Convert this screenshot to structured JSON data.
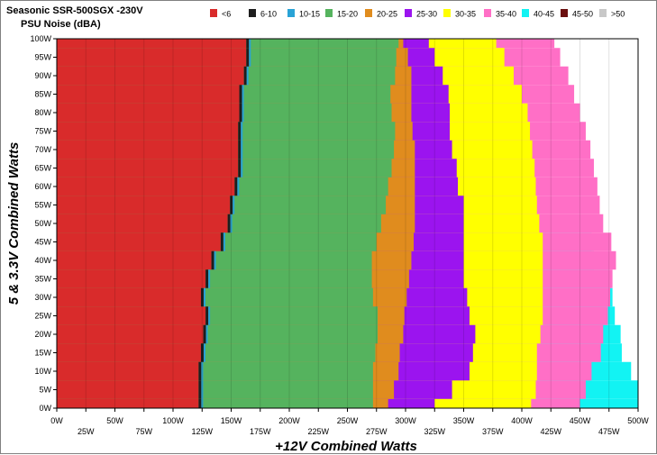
{
  "chart_data": {
    "type": "heatmap",
    "title": "Seasonic SSR-500SGX -230V",
    "subtitle": "PSU Noise (dBA)",
    "xlabel": "+12V Combined Watts",
    "ylabel": "5 & 3.3V Combined Watts",
    "xlim": [
      0,
      500
    ],
    "ylim": [
      0,
      100
    ],
    "x_ticks_upper": [
      "0W",
      "50W",
      "100W",
      "150W",
      "200W",
      "250W",
      "300W",
      "350W",
      "400W",
      "450W",
      "500W"
    ],
    "x_ticks_lower": [
      "25W",
      "75W",
      "125W",
      "175W",
      "225W",
      "275W",
      "325W",
      "375W",
      "425W",
      "475W"
    ],
    "y_ticks": [
      "0W",
      "5W",
      "10W",
      "15W",
      "20W",
      "25W",
      "30W",
      "35W",
      "40W",
      "45W",
      "50W",
      "55W",
      "60W",
      "65W",
      "70W",
      "75W",
      "80W",
      "85W",
      "90W",
      "95W",
      "100W"
    ],
    "legend": [
      {
        "label": "<6",
        "color": "#d92b2b"
      },
      {
        "label": "6-10",
        "color": "#1e1e1e"
      },
      {
        "label": "10-15",
        "color": "#29a3d6"
      },
      {
        "label": "15-20",
        "color": "#55b35e"
      },
      {
        "label": "20-25",
        "color": "#e08c1e"
      },
      {
        "label": "25-30",
        "color": "#9b14ef"
      },
      {
        "label": "30-35",
        "color": "#ffff00"
      },
      {
        "label": "35-40",
        "color": "#ff6fc6"
      },
      {
        "label": "40-45",
        "color": "#12f3f3"
      },
      {
        "label": "45-50",
        "color": "#6b0f0f"
      },
      {
        "label": ">50",
        "color": "#c8c8c8"
      }
    ],
    "band_boundaries_12v_watts": {
      "y_levels": [
        0,
        5,
        10,
        15,
        20,
        25,
        30,
        35,
        40,
        45,
        50,
        55,
        60,
        65,
        70,
        75,
        80,
        85,
        90,
        95,
        100
      ],
      "red_lt6_max": [
        122,
        122,
        122,
        124,
        126,
        128,
        124,
        128,
        133,
        141,
        147,
        149,
        153,
        156,
        156,
        156,
        157,
        157,
        161,
        163,
        163
      ],
      "green_15_20_max": [
        272,
        272,
        272,
        274,
        276,
        276,
        272,
        271,
        271,
        275,
        279,
        283,
        285,
        288,
        290,
        291,
        288,
        287,
        291,
        292,
        294
      ],
      "orange_20_25_max": [
        285,
        290,
        294,
        295,
        298,
        299,
        301,
        303,
        305,
        307,
        308,
        308,
        308,
        308,
        308,
        306,
        305,
        305,
        305,
        302,
        298
      ],
      "purple_25_30_max": [
        325,
        340,
        355,
        358,
        360,
        355,
        353,
        350,
        350,
        350,
        350,
        350,
        345,
        344,
        340,
        338,
        338,
        337,
        332,
        325,
        320
      ],
      "yellow_30_35_max": [
        408,
        412,
        413,
        413,
        416,
        418,
        418,
        418,
        418,
        418,
        415,
        413,
        412,
        411,
        409,
        407,
        405,
        400,
        393,
        385,
        378
      ],
      "pink_35_40_max": [
        450,
        455,
        460,
        468,
        470,
        474,
        476,
        478,
        481,
        477,
        470,
        467,
        465,
        462,
        459,
        455,
        450,
        445,
        440,
        433,
        428
      ],
      "cyan_40_45_max": [
        500,
        500,
        494,
        486,
        485,
        480,
        478,
        475,
        462,
        460,
        null,
        null,
        null,
        null,
        null,
        null,
        null,
        null,
        null,
        null,
        null
      ]
    }
  }
}
